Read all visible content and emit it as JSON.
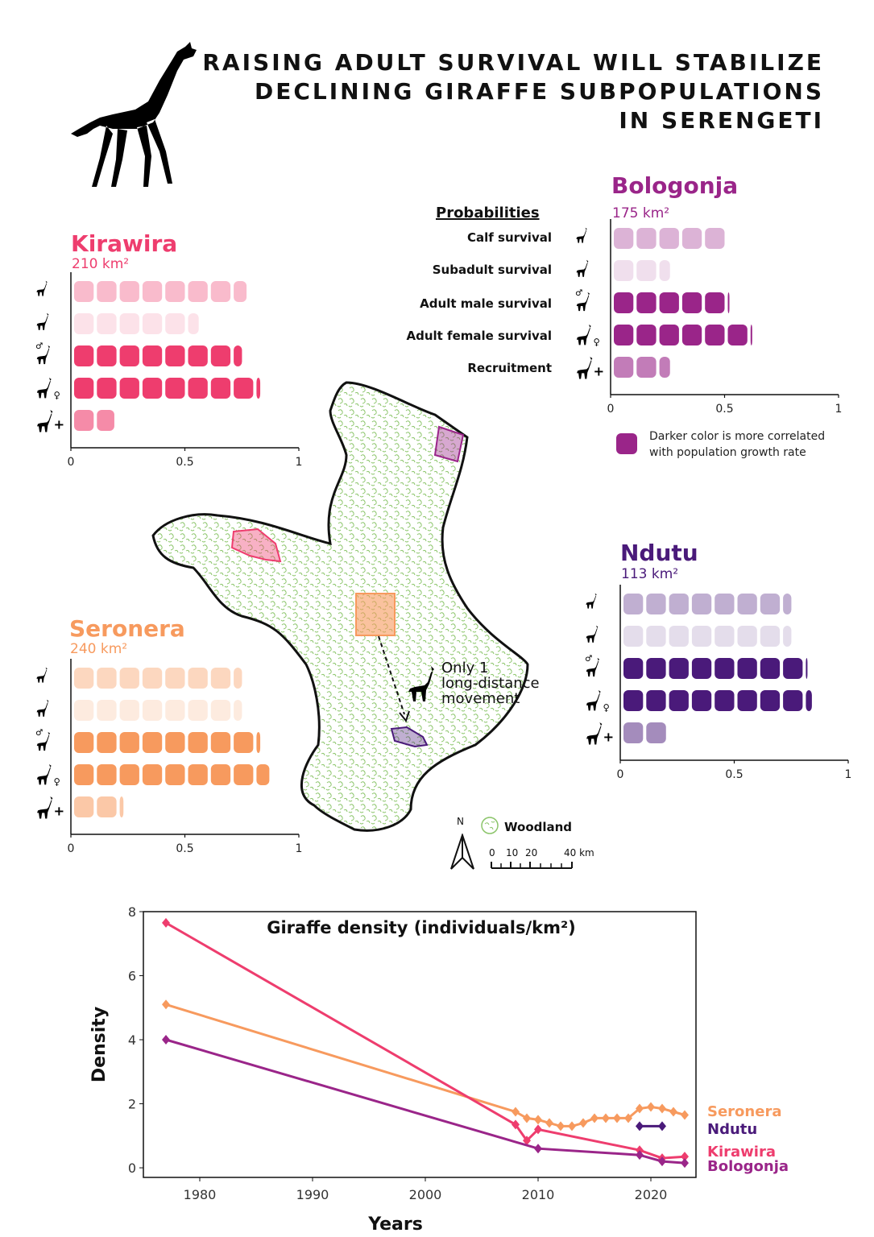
{
  "title_lines": [
    "RAISING ADULT SURVIVAL WILL STABILIZE",
    "DECLINING GIRAFFE SUBPOPULATIONS",
    "IN SERENGETI"
  ],
  "probabilities_header": "Probabilities",
  "probability_labels": [
    "Calf survival",
    "Subadult survival",
    "Adult male survival",
    "Adult female survival",
    "Recruitment"
  ],
  "legend_note": [
    "Darker color is more correlated",
    "with population growth rate"
  ],
  "woodland_label": "Woodland",
  "north_label": "N",
  "scale_labels": [
    "0",
    "10",
    "20",
    "40 km"
  ],
  "annotation_lines": [
    "Only 1",
    "long-distance",
    "movement"
  ],
  "icon_names": [
    "calf-giraffe-icon",
    "subadult-giraffe-icon",
    "adult-male-giraffe-icon",
    "adult-female-giraffe-icon",
    "recruitment-giraffe-icon"
  ],
  "colors": {
    "kirawira": "#ee3d6e",
    "seronera": "#f79a5e",
    "bologonja": "#9a2589",
    "ndutu": "#4a1a7a",
    "woodland": "#8cc56b"
  },
  "chart_data": [
    {
      "type": "bar",
      "site": "Kirawira",
      "area": "210 km²",
      "categories": [
        "Calf survival",
        "Subadult survival",
        "Adult male survival",
        "Adult female survival",
        "Recruitment"
      ],
      "values": [
        0.76,
        0.55,
        0.74,
        0.82,
        0.18
      ],
      "opacity": [
        0.35,
        0.15,
        1.0,
        1.0,
        0.6
      ],
      "xlim": [
        0,
        1
      ],
      "ticks": [
        "0",
        "0.5",
        "1"
      ]
    },
    {
      "type": "bar",
      "site": "Bologonja",
      "area": "175 km²",
      "categories": [
        "Calf survival",
        "Subadult survival",
        "Adult male survival",
        "Adult female survival",
        "Recruitment"
      ],
      "values": [
        0.5,
        0.25,
        0.51,
        0.61,
        0.25
      ],
      "opacity": [
        0.35,
        0.15,
        1.0,
        1.0,
        0.6
      ],
      "xlim": [
        0,
        1
      ],
      "ticks": [
        "0",
        "0.5",
        "1"
      ]
    },
    {
      "type": "bar",
      "site": "Ndutu",
      "area": "113 km²",
      "categories": [
        "Calf survival",
        "Subadult survival",
        "Adult male survival",
        "Adult female survival",
        "Recruitment"
      ],
      "values": [
        0.74,
        0.74,
        0.81,
        0.83,
        0.19
      ],
      "opacity": [
        0.35,
        0.15,
        1.0,
        1.0,
        0.5
      ],
      "xlim": [
        0,
        1
      ],
      "ticks": [
        "0",
        "0.5",
        "1"
      ]
    },
    {
      "type": "bar",
      "site": "Seronera",
      "area": "240 km²",
      "categories": [
        "Calf survival",
        "Subadult survival",
        "Adult male survival",
        "Adult female survival",
        "Recruitment"
      ],
      "values": [
        0.74,
        0.74,
        0.82,
        0.86,
        0.22
      ],
      "opacity": [
        0.4,
        0.2,
        1.0,
        1.0,
        0.55
      ],
      "xlim": [
        0,
        1
      ],
      "ticks": [
        "0",
        "0.5",
        "1"
      ]
    },
    {
      "type": "line",
      "title": "Giraffe density (individuals/km²)",
      "xlabel": "Years",
      "ylabel": "Density",
      "xlim": [
        1975,
        2024
      ],
      "ylim": [
        -0.3,
        8
      ],
      "xticks": [
        1980,
        1990,
        2000,
        2010,
        2020
      ],
      "yticks": [
        0,
        2,
        4,
        6,
        8
      ],
      "series": [
        {
          "name": "Seronera",
          "color": "#f79a5e",
          "points": [
            [
              1977,
              5.1
            ],
            [
              2008,
              1.75
            ],
            [
              2009,
              1.55
            ],
            [
              2010,
              1.5
            ],
            [
              2011,
              1.4
            ],
            [
              2012,
              1.3
            ],
            [
              2013,
              1.3
            ],
            [
              2014,
              1.4
            ],
            [
              2015,
              1.55
            ],
            [
              2016,
              1.55
            ],
            [
              2017,
              1.55
            ],
            [
              2018,
              1.55
            ],
            [
              2019,
              1.85
            ],
            [
              2020,
              1.9
            ],
            [
              2021,
              1.85
            ],
            [
              2022,
              1.75
            ],
            [
              2023,
              1.65
            ]
          ]
        },
        {
          "name": "Ndutu",
          "color": "#4a1a7a",
          "points": [
            [
              2019,
              1.3
            ],
            [
              2021,
              1.3
            ]
          ]
        },
        {
          "name": "Kirawira",
          "color": "#ee3d6e",
          "points": [
            [
              1977,
              7.65
            ],
            [
              2008,
              1.35
            ],
            [
              2009,
              0.85
            ],
            [
              2010,
              1.2
            ],
            [
              2019,
              0.55
            ],
            [
              2021,
              0.3
            ],
            [
              2023,
              0.35
            ]
          ]
        },
        {
          "name": "Bologonja",
          "color": "#9a2589",
          "points": [
            [
              1977,
              4.0
            ],
            [
              2010,
              0.6
            ],
            [
              2019,
              0.4
            ],
            [
              2021,
              0.2
            ],
            [
              2023,
              0.15
            ]
          ]
        }
      ]
    }
  ]
}
